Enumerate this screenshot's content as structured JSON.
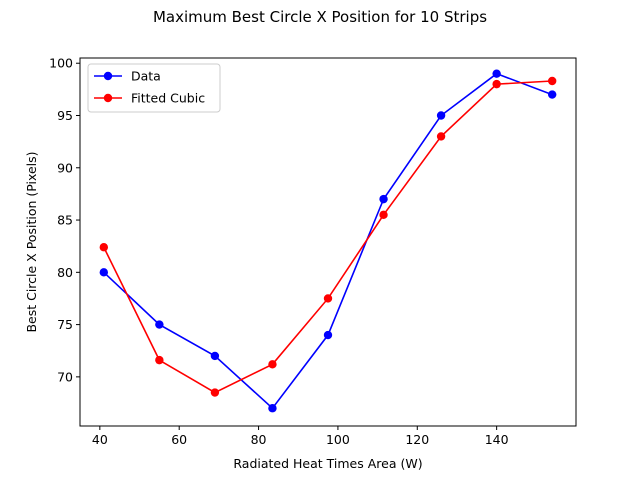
{
  "chart_data": {
    "type": "line",
    "title": "Maximum Best Circle X Position for 10 Strips",
    "xlabel": "Radiated Heat Times Area (W)",
    "ylabel": "Best Circle X Position (Pixels)",
    "xlim": [
      35,
      160
    ],
    "ylim": [
      65.3,
      100.5
    ],
    "xticks": [
      40,
      60,
      80,
      100,
      120,
      140
    ],
    "yticks": [
      70,
      75,
      80,
      85,
      90,
      95,
      100
    ],
    "x_tick_labels": [
      "40",
      "60",
      "80",
      "100",
      "120",
      "140"
    ],
    "y_tick_labels": [
      "70",
      "75",
      "80",
      "85",
      "90",
      "95",
      "100"
    ],
    "grid": false,
    "legend_position": "upper-left",
    "series": [
      {
        "name": "Data",
        "color": "#0000ff",
        "marker": "circle",
        "x": [
          41,
          55,
          69,
          83.5,
          97.5,
          111.5,
          126,
          140,
          154
        ],
        "y": [
          80,
          75,
          72,
          67,
          74,
          87,
          95,
          99,
          97
        ]
      },
      {
        "name": "Fitted Cubic",
        "color": "#ff0000",
        "marker": "circle",
        "x": [
          41,
          55,
          69,
          83.5,
          97.5,
          111.5,
          126,
          140,
          154
        ],
        "y": [
          82.4,
          71.6,
          68.5,
          71.2,
          77.5,
          85.5,
          93,
          98,
          98.3
        ]
      }
    ]
  }
}
